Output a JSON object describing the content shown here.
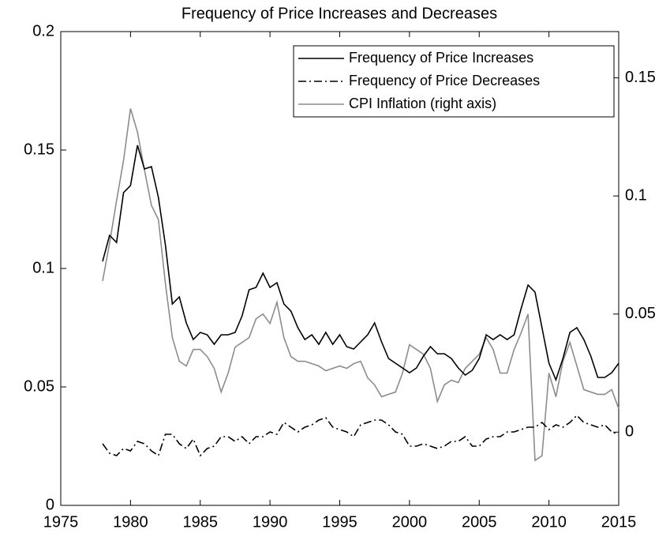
{
  "chart_data": {
    "type": "line",
    "title": "Frequency of Price Increases and Decreases",
    "x": [
      1978,
      1978.5,
      1979,
      1979.5,
      1980,
      1980.5,
      1981,
      1981.5,
      1982,
      1982.5,
      1983,
      1983.5,
      1984,
      1984.5,
      1985,
      1985.5,
      1986,
      1986.5,
      1987,
      1987.5,
      1988,
      1988.5,
      1989,
      1989.5,
      1990,
      1990.5,
      1991,
      1991.5,
      1992,
      1992.5,
      1993,
      1993.5,
      1994,
      1994.5,
      1995,
      1995.5,
      1996,
      1996.5,
      1997,
      1997.5,
      1998,
      1998.5,
      1999,
      1999.5,
      2000,
      2000.5,
      2001,
      2001.5,
      2002,
      2002.5,
      2003,
      2003.5,
      2004,
      2004.5,
      2005,
      2005.5,
      2006,
      2006.5,
      2007,
      2007.5,
      2008,
      2008.5,
      2009,
      2009.5,
      2010,
      2010.5,
      2011,
      2011.5,
      2012,
      2012.5,
      2013,
      2013.5,
      2014,
      2014.5,
      2015
    ],
    "series": [
      {
        "name": "Frequency of Price Increases",
        "color": "#000000",
        "style": "solid",
        "values": [
          0.103,
          0.114,
          0.111,
          0.132,
          0.135,
          0.152,
          0.142,
          0.143,
          0.13,
          0.11,
          0.085,
          0.088,
          0.077,
          0.07,
          0.073,
          0.072,
          0.068,
          0.072,
          0.072,
          0.073,
          0.08,
          0.091,
          0.092,
          0.098,
          0.092,
          0.094,
          0.085,
          0.082,
          0.075,
          0.07,
          0.072,
          0.068,
          0.073,
          0.068,
          0.072,
          0.067,
          0.066,
          0.069,
          0.072,
          0.077,
          0.069,
          0.062,
          0.06,
          0.058,
          0.056,
          0.058,
          0.063,
          0.067,
          0.064,
          0.064,
          0.062,
          0.058,
          0.055,
          0.057,
          0.062,
          0.072,
          0.07,
          0.072,
          0.07,
          0.072,
          0.083,
          0.093,
          0.09,
          0.075,
          0.06,
          0.053,
          0.062,
          0.073,
          0.075,
          0.07,
          0.063,
          0.054,
          0.054,
          0.056,
          0.06
        ]
      },
      {
        "name": "Frequency of Price Decreases",
        "color": "#000000",
        "style": "dashdot",
        "values": [
          0.026,
          0.022,
          0.021,
          0.024,
          0.023,
          0.027,
          0.026,
          0.023,
          0.021,
          0.03,
          0.03,
          0.026,
          0.024,
          0.028,
          0.021,
          0.024,
          0.025,
          0.029,
          0.029,
          0.027,
          0.029,
          0.026,
          0.029,
          0.029,
          0.031,
          0.03,
          0.035,
          0.033,
          0.031,
          0.033,
          0.034,
          0.036,
          0.037,
          0.033,
          0.032,
          0.031,
          0.029,
          0.034,
          0.035,
          0.036,
          0.036,
          0.034,
          0.031,
          0.03,
          0.025,
          0.025,
          0.026,
          0.025,
          0.024,
          0.025,
          0.027,
          0.027,
          0.029,
          0.025,
          0.025,
          0.028,
          0.029,
          0.029,
          0.031,
          0.031,
          0.032,
          0.033,
          0.033,
          0.035,
          0.032,
          0.034,
          0.033,
          0.035,
          0.038,
          0.035,
          0.034,
          0.033,
          0.034,
          0.031,
          0.03
        ]
      },
      {
        "name": "CPI Inflation (right axis)",
        "color": "#8c8c8c",
        "style": "solid",
        "axis": "y2",
        "values": [
          0.064,
          0.08,
          0.098,
          0.115,
          0.137,
          0.127,
          0.111,
          0.096,
          0.09,
          0.063,
          0.04,
          0.03,
          0.028,
          0.035,
          0.035,
          0.032,
          0.027,
          0.017,
          0.025,
          0.036,
          0.038,
          0.04,
          0.048,
          0.05,
          0.046,
          0.055,
          0.04,
          0.032,
          0.03,
          0.03,
          0.029,
          0.028,
          0.026,
          0.027,
          0.028,
          0.027,
          0.029,
          0.03,
          0.023,
          0.02,
          0.015,
          0.016,
          0.017,
          0.025,
          0.037,
          0.035,
          0.033,
          0.027,
          0.013,
          0.02,
          0.022,
          0.021,
          0.027,
          0.03,
          0.033,
          0.04,
          0.035,
          0.025,
          0.025,
          0.035,
          0.042,
          0.05,
          -0.012,
          -0.01,
          0.025,
          0.015,
          0.03,
          0.038,
          0.028,
          0.018,
          0.017,
          0.016,
          0.016,
          0.018,
          0.01
        ]
      }
    ],
    "xlim": [
      1975,
      2015
    ],
    "xticks": [
      1975,
      1980,
      1985,
      1990,
      1995,
      2000,
      2005,
      2010,
      2015
    ],
    "ylim": [
      0,
      0.2
    ],
    "yticks": [
      0,
      0.05,
      0.1,
      0.15,
      0.2
    ],
    "y2lim": [
      -0.031,
      0.1696
    ],
    "y2ticks": [
      0,
      0.05,
      0.1,
      0.15
    ],
    "grid": false,
    "legend": "top-right"
  }
}
